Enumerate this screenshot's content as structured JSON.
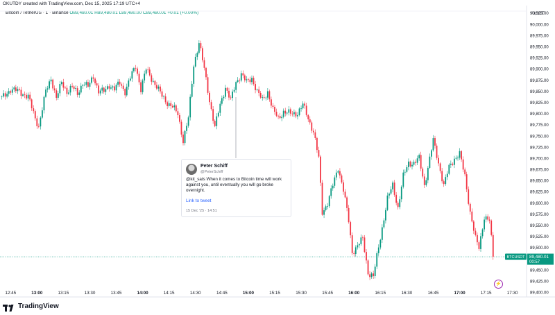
{
  "header": {
    "created_line": "OKUTDY created with TradingView.com, Dec 15, 2025 17:19 UTC+4",
    "symbol": "Bitcoin / TetherUS · 1 · Binance",
    "ohlc": "O89,480.01 H89,480.01 L89,480.00 C89,480.01 +0.01 (+0.00%)",
    "currency": "USDT"
  },
  "tweet": {
    "name": "Peter Schiff",
    "handle": "@PeterSchiff",
    "text": "@kit_sats When it comes to Bitcoin time will work against you, until eventually you will go broke overnight.",
    "link": "Link to tweet",
    "date": "15 Dec '25 · 14:51"
  },
  "brand": {
    "name": "TradingView",
    "icon": "tradingview-logo-icon"
  },
  "price_tag": {
    "symbol": "BTCUSDT",
    "price": "89,480.01",
    "countdown": "00:57"
  },
  "colors": {
    "up": "#089981",
    "down": "#f23645",
    "accent": "#9c27b0"
  },
  "chart_data": {
    "type": "candlestick",
    "x_ticks": [
      "12:45",
      "13:00",
      "13:15",
      "13:30",
      "13:45",
      "14:00",
      "14:15",
      "14:30",
      "14:45",
      "15:00",
      "15:15",
      "15:30",
      "15:45",
      "16:00",
      "16:15",
      "16:30",
      "16:45",
      "17:00",
      "17:15",
      "17:30"
    ],
    "y_ticks": [
      "90,025.00",
      "90,000.00",
      "89,975.00",
      "89,950.00",
      "89,925.00",
      "89,900.00",
      "89,875.00",
      "89,850.00",
      "89,825.00",
      "89,800.00",
      "89,775.00",
      "89,750.00",
      "89,725.00",
      "89,700.00",
      "89,675.00",
      "89,650.00",
      "89,625.00",
      "89,600.00",
      "89,575.00",
      "89,550.00",
      "89,525.00",
      "89,500.00",
      "89,475.00",
      "89,450.00",
      "89,425.00",
      "89,400.00"
    ],
    "x_range": [
      "12:39",
      "17:38"
    ],
    "ylim": [
      89390,
      90030
    ],
    "last_price": 89480.01,
    "close_path": [
      [
        "12:40",
        89835
      ],
      [
        "12:45",
        89855
      ],
      [
        "12:50",
        89850
      ],
      [
        "12:55",
        89838
      ],
      [
        "12:59",
        89790
      ],
      [
        "13:01",
        89772
      ],
      [
        "13:05",
        89850
      ],
      [
        "13:08",
        89880
      ],
      [
        "13:11",
        89835
      ],
      [
        "13:14",
        89870
      ],
      [
        "13:17",
        89850
      ],
      [
        "13:20",
        89860
      ],
      [
        "13:23",
        89845
      ],
      [
        "13:26",
        89870
      ],
      [
        "13:29",
        89860
      ],
      [
        "13:32",
        89885
      ],
      [
        "13:35",
        89850
      ],
      [
        "13:38",
        89850
      ],
      [
        "13:41",
        89865
      ],
      [
        "13:44",
        89855
      ],
      [
        "13:47",
        89870
      ],
      [
        "13:50",
        89850
      ],
      [
        "13:53",
        89880
      ],
      [
        "13:56",
        89908
      ],
      [
        "13:59",
        89855
      ],
      [
        "14:02",
        89900
      ],
      [
        "14:05",
        89880
      ],
      [
        "14:08",
        89860
      ],
      [
        "14:11",
        89840
      ],
      [
        "14:14",
        89825
      ],
      [
        "14:17",
        89815
      ],
      [
        "14:20",
        89800
      ],
      [
        "14:23",
        89740
      ],
      [
        "14:26",
        89790
      ],
      [
        "14:29",
        89910
      ],
      [
        "14:32",
        89960
      ],
      [
        "14:35",
        89900
      ],
      [
        "14:38",
        89830
      ],
      [
        "14:41",
        89770
      ],
      [
        "14:44",
        89820
      ],
      [
        "14:47",
        89860
      ],
      [
        "14:50",
        89830
      ],
      [
        "14:53",
        89870
      ],
      [
        "14:56",
        89890
      ],
      [
        "14:59",
        89870
      ],
      [
        "15:02",
        89880
      ],
      [
        "15:05",
        89850
      ],
      [
        "15:08",
        89830
      ],
      [
        "15:11",
        89850
      ],
      [
        "15:14",
        89808
      ],
      [
        "15:17",
        89790
      ],
      [
        "15:20",
        89805
      ],
      [
        "15:24",
        89800
      ],
      [
        "15:28",
        89802
      ],
      [
        "15:31",
        89820
      ],
      [
        "15:34",
        89790
      ],
      [
        "15:37",
        89760
      ],
      [
        "15:40",
        89700
      ],
      [
        "15:42",
        89580
      ],
      [
        "15:45",
        89600
      ],
      [
        "15:48",
        89640
      ],
      [
        "15:51",
        89680
      ],
      [
        "15:54",
        89630
      ],
      [
        "15:57",
        89560
      ],
      [
        "15:59",
        89490
      ],
      [
        "16:02",
        89505
      ],
      [
        "16:05",
        89520
      ],
      [
        "16:08",
        89445
      ],
      [
        "16:11",
        89435
      ],
      [
        "16:13",
        89480
      ],
      [
        "16:16",
        89545
      ],
      [
        "16:19",
        89610
      ],
      [
        "16:22",
        89640
      ],
      [
        "16:25",
        89590
      ],
      [
        "16:28",
        89660
      ],
      [
        "16:31",
        89690
      ],
      [
        "16:34",
        89690
      ],
      [
        "16:37",
        89700
      ],
      [
        "16:40",
        89640
      ],
      [
        "16:43",
        89700
      ],
      [
        "16:45",
        89740
      ],
      [
        "16:48",
        89690
      ],
      [
        "16:51",
        89640
      ],
      [
        "16:54",
        89680
      ],
      [
        "16:57",
        89700
      ],
      [
        "17:00",
        89710
      ],
      [
        "17:03",
        89660
      ],
      [
        "17:06",
        89580
      ],
      [
        "17:09",
        89520
      ],
      [
        "17:11",
        89500
      ],
      [
        "17:14",
        89570
      ],
      [
        "17:17",
        89560
      ],
      [
        "17:19",
        89480
      ]
    ]
  }
}
